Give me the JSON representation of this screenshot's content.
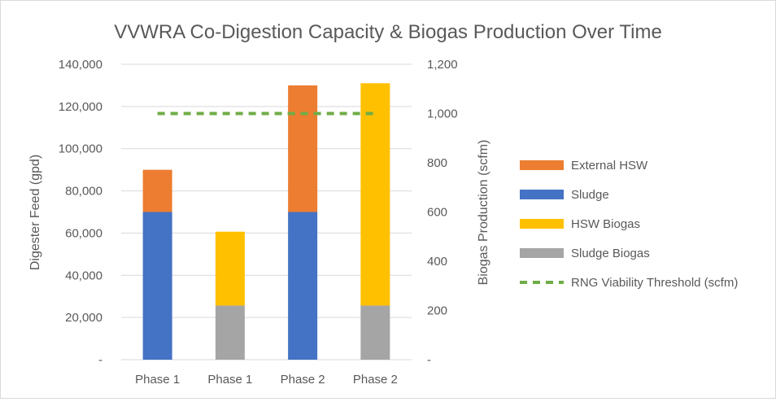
{
  "chart_data": {
    "type": "bar",
    "stacked": true,
    "title": "VVWRA Co-Digestion Capacity & Biogas Production Over Time",
    "categories": [
      "Phase 1",
      "Phase 1",
      "Phase 2",
      "Phase 2"
    ],
    "left_axis": {
      "label": "Digester Feed (gpd)",
      "min": 0,
      "max": 140000,
      "ticks": [
        "-",
        "20,000",
        "40,000",
        "60,000",
        "80,000",
        "100,000",
        "120,000",
        "140,000"
      ]
    },
    "right_axis": {
      "label": "Biogas Production (scfm)",
      "min": 0,
      "max": 1200,
      "ticks": [
        "-",
        "200",
        "400",
        "600",
        "800",
        "1,000",
        "1,200"
      ]
    },
    "series": [
      {
        "name": "Sludge",
        "axis": "left",
        "color": "#4472C4",
        "values": [
          70000,
          null,
          70000,
          null
        ]
      },
      {
        "name": "External HSW",
        "axis": "left",
        "color": "#ED7D31",
        "values": [
          20000,
          null,
          60000,
          null
        ]
      },
      {
        "name": "Sludge Biogas",
        "axis": "right",
        "color": "#A5A5A5",
        "values": [
          null,
          220,
          null,
          220
        ]
      },
      {
        "name": "HSW Biogas",
        "axis": "right",
        "color": "#FFC000",
        "values": [
          null,
          300,
          null,
          903
        ]
      }
    ],
    "threshold": {
      "name": "RNG Viability Threshold (scfm)",
      "axis": "right",
      "color": "#70AD47",
      "value": 1000
    },
    "legend_position": "right",
    "legend": [
      "External HSW",
      "Sludge",
      "HSW Biogas",
      "Sludge Biogas",
      "RNG Viability Threshold (scfm)"
    ],
    "grid": true
  }
}
